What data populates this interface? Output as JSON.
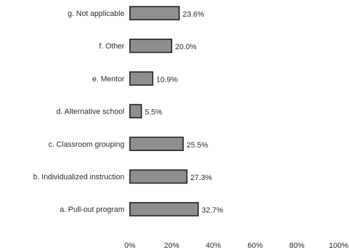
{
  "chart_data": {
    "type": "bar",
    "orientation": "horizontal",
    "categories": [
      "g. Not applicable",
      "f. Other",
      "e. Mentor",
      "d. Alternative school",
      "c. Classroom grouping",
      "b. Individualized instruction",
      "a. Pull-out program"
    ],
    "values": [
      23.6,
      20.0,
      10.9,
      5.5,
      25.5,
      27.3,
      32.7
    ],
    "data_labels": [
      "23.6%",
      "20.0%",
      "10.9%",
      "5.5%",
      "25.5%",
      "27.3%",
      "32.7%"
    ],
    "xlim": [
      0,
      100
    ],
    "x_ticks": [
      "0%",
      "20%",
      "40%",
      "60%",
      "80%",
      "100%"
    ],
    "title": "",
    "xlabel": "",
    "ylabel": "",
    "grid": false,
    "legend": "none",
    "colors": {
      "bar_fill": "#8f8f8f",
      "bar_stroke": "#1a1a1a",
      "text": "#2a2a2a"
    }
  }
}
